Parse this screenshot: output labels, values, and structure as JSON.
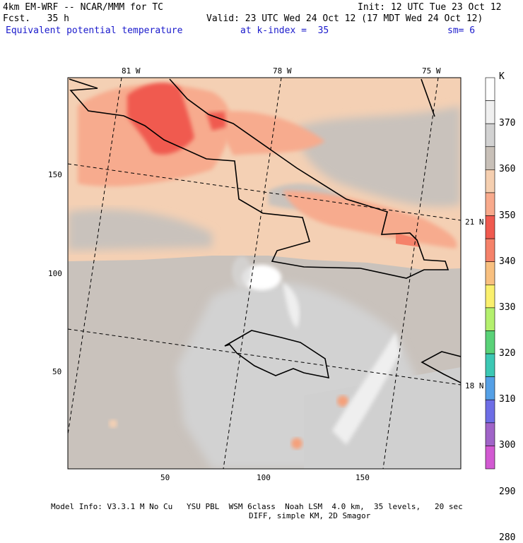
{
  "header": {
    "model_line": "4km EM-WRF -- NCAR/MMM for TC",
    "fcst_line": "Fcst.   35 h",
    "init_line": "Init: 12 UTC Tue 23 Oct 12",
    "valid_line": "Valid: 23 UTC Wed 24 Oct 12 (17 MDT Wed 24 Oct 12)",
    "field_name": "Equivalent potential temperature",
    "k_index": "at k-index =  35",
    "smoothing": "sm= 6"
  },
  "map_labels": {
    "lon_top": [
      "81 W",
      "78 W",
      "75 W"
    ],
    "lat_right": [
      "21 N",
      "18 N"
    ],
    "x_ticks": [
      "50",
      "100",
      "150"
    ],
    "y_ticks": [
      "150",
      "100",
      "50"
    ]
  },
  "colorbar": {
    "unit": "K",
    "levels": [
      "370",
      "360",
      "350",
      "340",
      "330",
      "320",
      "310",
      "300",
      "290",
      "280"
    ],
    "colors": [
      "#ffffff",
      "#f0f0f0",
      "#d2d2d2",
      "#c8c0b8",
      "#f5cfb0",
      "#f8aa8c",
      "#f05a4f",
      "#f5826a",
      "#f8c080",
      "#faf06e",
      "#b4f06e",
      "#5ad278",
      "#3cc8b4",
      "#55a0e6",
      "#6e6ee6",
      "#a064c8",
      "#d25ad2"
    ]
  },
  "footer": {
    "line1": "Model Info: V3.3.1 M No Cu   YSU PBL  WSM 6class  Noah LSM  4.0 km,  35 levels,   20 sec",
    "line2": "DIFF, simple KM, 2D Smagor"
  }
}
